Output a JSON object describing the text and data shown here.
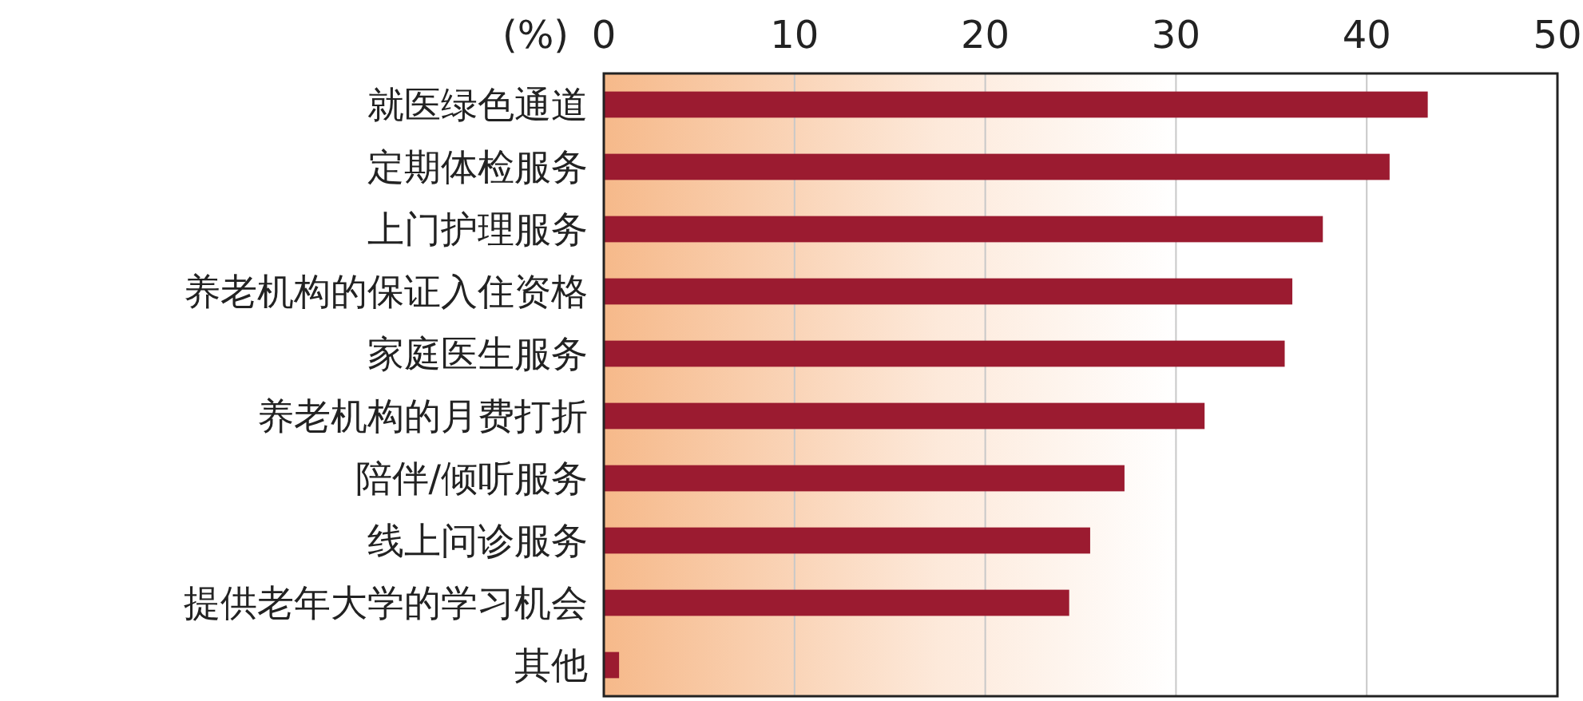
{
  "chart_data": {
    "type": "bar",
    "orientation": "horizontal",
    "xlabel": "(%)",
    "categories": [
      "就医绿色通道",
      "定期体检服务",
      "上门护理服务",
      "养老机构的保证入住资格",
      "家庭医生服务",
      "养老机构的月费打折",
      "陪伴/倾听服务",
      "线上问诊服务",
      "提供老年大学的学习机会",
      "其他"
    ],
    "values": [
      43.2,
      41.2,
      37.7,
      36.1,
      35.7,
      31.5,
      27.3,
      25.5,
      24.4,
      0.8
    ],
    "color": "#9b1b30",
    "xlim": [
      0,
      50
    ],
    "xticks": [
      0,
      10,
      20,
      30,
      40,
      50
    ],
    "grid": "x"
  }
}
